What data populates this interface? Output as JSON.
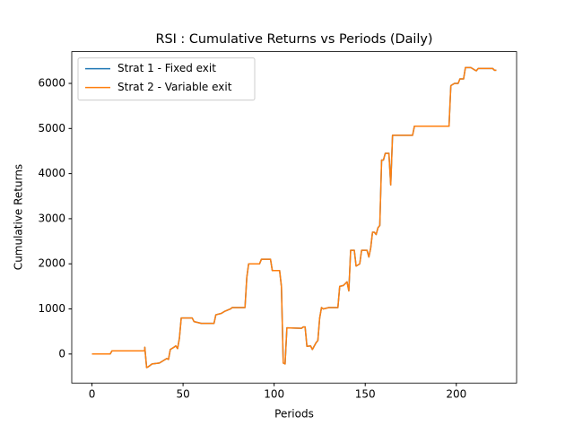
{
  "chart_data": {
    "type": "line",
    "title": "RSI : Cumulative Returns vs Periods (Daily)",
    "xlabel": "Periods",
    "ylabel": "Cumulative Returns",
    "x": [
      0,
      10,
      11,
      29,
      29,
      30,
      31,
      33,
      37,
      39,
      41,
      42,
      43,
      45,
      46,
      47,
      48,
      49,
      55,
      56,
      58,
      60,
      67,
      68,
      71,
      73,
      76,
      77,
      84,
      85,
      86,
      92,
      93,
      98,
      99,
      103,
      104,
      105,
      106,
      107,
      115,
      116,
      117,
      118,
      120,
      121,
      123,
      124,
      125,
      126,
      127,
      130,
      135,
      136,
      138,
      140,
      141,
      142,
      144,
      145,
      147,
      148,
      151,
      152,
      153,
      154,
      155,
      156,
      157,
      158,
      159,
      160,
      161,
      163,
      164,
      165,
      176,
      177,
      196,
      197,
      199,
      201,
      202,
      204,
      205,
      208,
      210,
      211,
      212,
      220,
      221,
      222
    ],
    "series": [
      {
        "name": "Strat 1 - Fixed exit",
        "color": "#1f77b4",
        "values": [
          0,
          0,
          70,
          70,
          150,
          -300,
          -280,
          -220,
          -200,
          -150,
          -100,
          -120,
          100,
          150,
          180,
          120,
          350,
          800,
          800,
          720,
          700,
          680,
          680,
          870,
          900,
          950,
          1000,
          1030,
          1030,
          1700,
          2000,
          2000,
          2100,
          2100,
          1850,
          1850,
          1500,
          -200,
          -220,
          580,
          570,
          600,
          600,
          170,
          180,
          100,
          250,
          300,
          800,
          1030,
          1000,
          1030,
          1030,
          1500,
          1520,
          1600,
          1400,
          2300,
          2300,
          1950,
          2000,
          2300,
          2300,
          2150,
          2350,
          2700,
          2700,
          2650,
          2800,
          2850,
          4300,
          4300,
          4450,
          4450,
          3750,
          4850,
          4850,
          5050,
          5050,
          5950,
          6000,
          6000,
          6100,
          6100,
          6350,
          6350,
          6300,
          6280,
          6330,
          6330,
          6290,
          6290
        ]
      },
      {
        "name": "Strat 2 - Variable exit",
        "color": "#ff7f0e",
        "values": [
          0,
          0,
          70,
          70,
          150,
          -300,
          -280,
          -220,
          -200,
          -150,
          -100,
          -120,
          100,
          150,
          180,
          120,
          350,
          800,
          800,
          720,
          700,
          680,
          680,
          870,
          900,
          950,
          1000,
          1030,
          1030,
          1700,
          2000,
          2000,
          2100,
          2100,
          1850,
          1850,
          1500,
          -200,
          -220,
          580,
          570,
          600,
          600,
          170,
          180,
          100,
          250,
          300,
          800,
          1030,
          1000,
          1030,
          1030,
          1500,
          1520,
          1600,
          1400,
          2300,
          2300,
          1950,
          2000,
          2300,
          2300,
          2150,
          2350,
          2700,
          2700,
          2650,
          2800,
          2850,
          4300,
          4300,
          4450,
          4450,
          3750,
          4850,
          4850,
          5050,
          5050,
          5950,
          6000,
          6000,
          6100,
          6100,
          6350,
          6350,
          6300,
          6280,
          6330,
          6330,
          6290,
          6290
        ]
      }
    ],
    "xlim": [
      -11.1,
      233.1
    ],
    "xticks": [
      0,
      50,
      100,
      150,
      200
    ],
    "ylim": [
      -644,
      6704
    ],
    "yticks": [
      0,
      1000,
      2000,
      3000,
      4000,
      5000,
      6000
    ],
    "legend": "upper left"
  }
}
